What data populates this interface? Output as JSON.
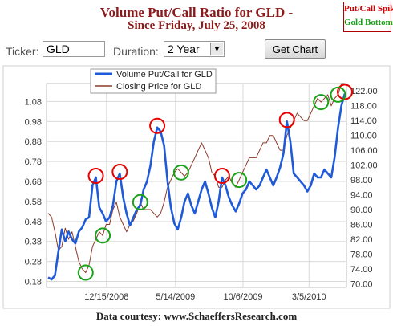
{
  "header": {
    "title": "Volume Put/Call Ratio for GLD -",
    "subtitle": "Since Friday, July 25, 2008",
    "legend_spike": "Put/Call Spike",
    "legend_bottom": "Gold Bottom"
  },
  "controls": {
    "ticker_label": "Ticker:",
    "ticker_value": "GLD",
    "duration_label": "Duration:",
    "duration_value": "2 Year",
    "get_chart_label": "Get Chart"
  },
  "footer": {
    "courtesy": "Data courtesy: www.SchaeffersResearch.com"
  },
  "colors": {
    "put_call": "#1f5bd8",
    "closing": "#8b3a2a",
    "spike": "#e60000",
    "bottom": "#18a318",
    "grid": "#d9d9d9"
  },
  "chart_data": {
    "type": "line",
    "x_tick_labels": [
      "12/15/2008",
      "5/14/2009",
      "10/6/2009",
      "3/5/2010"
    ],
    "y_left": {
      "ticks": [
        "0.18",
        "0.28",
        "0.38",
        "0.48",
        "0.58",
        "0.68",
        "0.78",
        "0.88",
        "0.98",
        "1.08"
      ],
      "range": [
        0.15,
        1.17
      ]
    },
    "y_right": {
      "ticks": [
        "70.00",
        "74.00",
        "78.00",
        "82.00",
        "86.00",
        "90.00",
        "94.00",
        "98.00",
        "102.00",
        "106.00",
        "110.00",
        "114.00",
        "118.00",
        "122.00"
      ],
      "range": [
        69,
        124
      ]
    },
    "series": [
      {
        "name": "Volume Put/Call for GLD",
        "axis": "left",
        "values": [
          0.2,
          0.19,
          0.21,
          0.33,
          0.44,
          0.38,
          0.43,
          0.39,
          0.37,
          0.43,
          0.45,
          0.49,
          0.5,
          0.66,
          0.7,
          0.55,
          0.52,
          0.48,
          0.5,
          0.56,
          0.68,
          0.72,
          0.6,
          0.52,
          0.46,
          0.5,
          0.54,
          0.56,
          0.64,
          0.68,
          0.76,
          0.88,
          0.95,
          0.93,
          0.86,
          0.68,
          0.55,
          0.47,
          0.44,
          0.5,
          0.58,
          0.62,
          0.56,
          0.52,
          0.58,
          0.64,
          0.68,
          0.62,
          0.55,
          0.5,
          0.58,
          0.7,
          0.66,
          0.6,
          0.56,
          0.53,
          0.57,
          0.62,
          0.64,
          0.68,
          0.66,
          0.64,
          0.66,
          0.7,
          0.74,
          0.7,
          0.66,
          0.7,
          0.75,
          0.82,
          0.98,
          0.88,
          0.72,
          0.7,
          0.68,
          0.66,
          0.63,
          0.66,
          0.72,
          0.7,
          0.7,
          0.74,
          0.72,
          0.7,
          0.8,
          0.95,
          1.06,
          1.12
        ]
      },
      {
        "name": "Closing Price for GLD",
        "axis": "right",
        "values": [
          89,
          88,
          84,
          79,
          80,
          85,
          82,
          84,
          80,
          76,
          74,
          73,
          75,
          80,
          82,
          84,
          83,
          86,
          86,
          90,
          92,
          88,
          86,
          84,
          86,
          87,
          89,
          92,
          90,
          90,
          90,
          89,
          88,
          89,
          92,
          96,
          98,
          100,
          101,
          100,
          99,
          100,
          102,
          104,
          106,
          108,
          106,
          104,
          100,
          99,
          96,
          96,
          98,
          99,
          97,
          96,
          98,
          100,
          102,
          104,
          104,
          104,
          106,
          108,
          108,
          110,
          110,
          108,
          106,
          106,
          110,
          112,
          114,
          116,
          115,
          114,
          114,
          116,
          118,
          120,
          119,
          120,
          121,
          118,
          120,
          121,
          124,
          124
        ]
      }
    ]
  }
}
